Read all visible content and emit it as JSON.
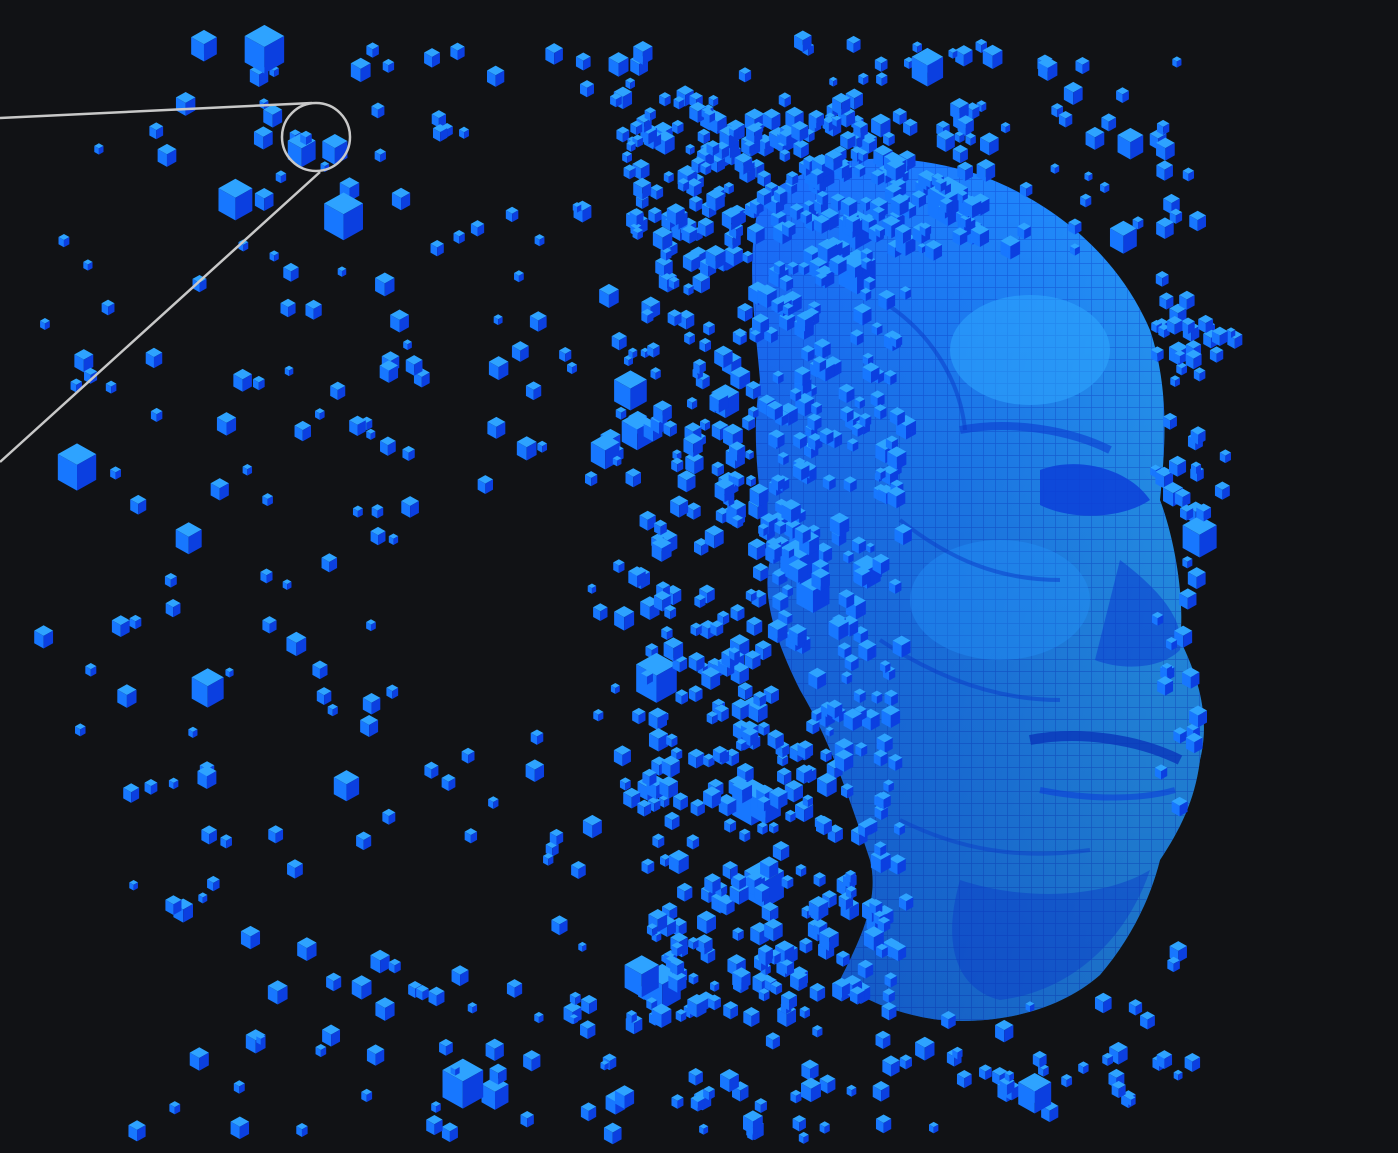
{
  "scene": {
    "subject": "voxel-head-dispersing-into-cubes",
    "colors": {
      "background": "#111215",
      "voxel_light": "#2ea3ff",
      "voxel_mid": "#1777ff",
      "voxel_dark": "#0b3fe0",
      "voxel_shadow": "#0622a8",
      "callout_line": "#c8c8c8"
    },
    "has_callout_marker": true
  }
}
